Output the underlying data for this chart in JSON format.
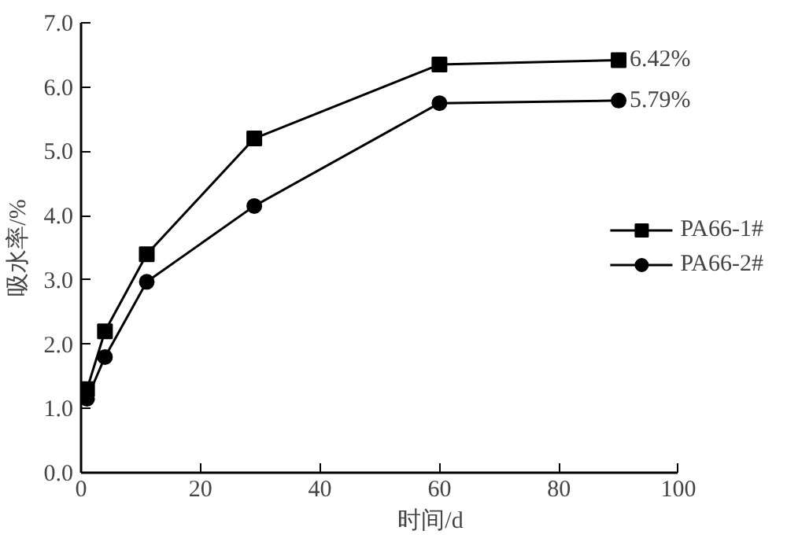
{
  "chart_data": {
    "type": "line",
    "xlabel": "时间/d",
    "ylabel": "吸水率/%",
    "xlim": [
      0,
      100
    ],
    "xticks": [
      0,
      20,
      40,
      60,
      80,
      100
    ],
    "ylim": [
      0,
      7
    ],
    "yticks": [
      {
        "value": 0,
        "label": "0.0"
      },
      {
        "value": 1,
        "label": "1.0"
      },
      {
        "value": 2,
        "label": "2.0"
      },
      {
        "value": 3,
        "label": "3.0"
      },
      {
        "value": 4,
        "label": "4.0"
      },
      {
        "value": 5,
        "label": "5.0"
      },
      {
        "value": 6,
        "label": "6.0"
      },
      {
        "value": 7,
        "label": "7.0"
      }
    ],
    "x": [
      1,
      4,
      11,
      29,
      60,
      90
    ],
    "series": [
      {
        "name": "PA66-1#",
        "color": "#000000",
        "marker": "square",
        "values": [
          1.3,
          2.2,
          3.4,
          5.2,
          6.35,
          6.42
        ]
      },
      {
        "name": "PA66-2#",
        "color": "#000000",
        "marker": "circle",
        "values": [
          1.15,
          1.8,
          2.97,
          4.15,
          5.75,
          5.79
        ]
      }
    ],
    "annotations": [
      {
        "text": "6.42%",
        "x": 90,
        "y": 6.42
      },
      {
        "text": "5.79%",
        "x": 90,
        "y": 5.79
      }
    ],
    "grid": false,
    "legend": "right",
    "line_style": "solid"
  }
}
